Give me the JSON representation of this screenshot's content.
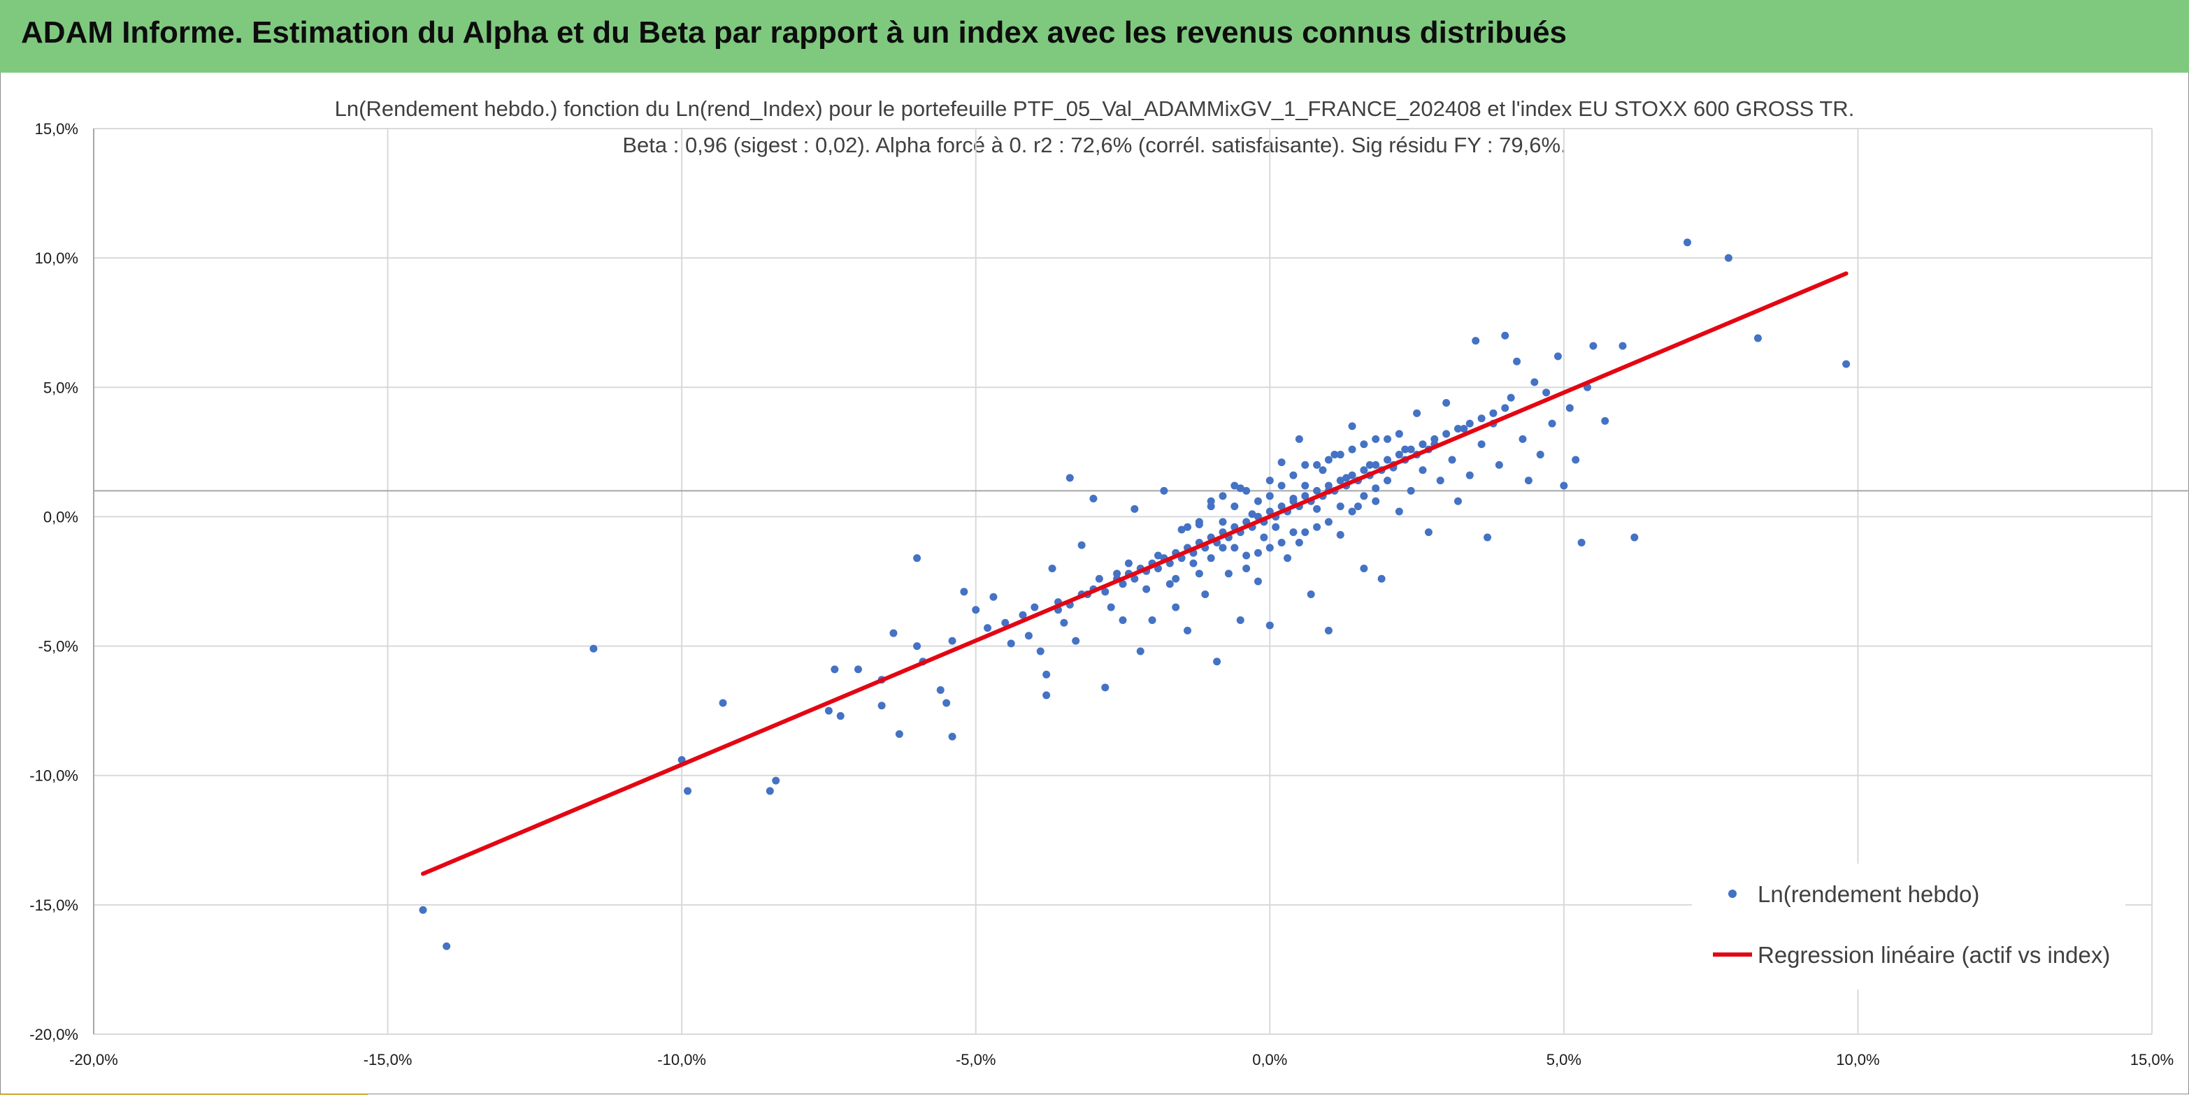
{
  "header": {
    "title": "ADAM Informe. Estimation du Alpha et du Beta par rapport à un index avec les revenus connus distribués"
  },
  "colors": {
    "banner": "#7fc97e",
    "accent": "#f7c21c",
    "points": "#4472c4",
    "regression": "#e30613",
    "grid": "#d9d9d9"
  },
  "chart_data": {
    "type": "scatter",
    "title": "Ln(Rendement hebdo.) fonction du Ln(rend_Index) pour le portefeuille PTF_05_Val_ADAMMixGV_1_FRANCE_202408 et l'index EU STOXX 600 GROSS TR.",
    "subtitle": "Beta : 0,96 (sigest : 0,02). Alpha forcé à 0. r2 : 72,6% (corrél. satisfaisante). Sig résidu FY : 79,6%.",
    "xlabel": "",
    "ylabel": "",
    "xlim": [
      -0.2,
      0.15
    ],
    "ylim": [
      -0.2,
      0.15
    ],
    "x_ticks": [
      "-20,0%",
      "-15,0%",
      "-10,0%",
      "-5,0%",
      "0,0%",
      "5,0%",
      "10,0%",
      "15,0%"
    ],
    "y_ticks": [
      "-20,0%",
      "-15,0%",
      "-10,0%",
      "-5,0%",
      "0,0%",
      "5,0%",
      "10,0%",
      "15,0%"
    ],
    "grid": true,
    "x_axis_crosses_y": 0.01,
    "legend": {
      "position": "bottom-right",
      "entries": [
        "Ln(rendement hebdo)",
        "Regression linéaire (actif vs index)"
      ]
    },
    "series": [
      {
        "name": "Ln(rendement hebdo)",
        "type": "scatter",
        "points": [
          [
            -0.144,
            -0.152
          ],
          [
            -0.14,
            -0.166
          ],
          [
            -0.115,
            -0.051
          ],
          [
            -0.1,
            -0.094
          ],
          [
            -0.099,
            -0.106
          ],
          [
            -0.093,
            -0.072
          ],
          [
            -0.085,
            -0.106
          ],
          [
            -0.084,
            -0.102
          ],
          [
            -0.075,
            -0.075
          ],
          [
            -0.073,
            -0.077
          ],
          [
            -0.074,
            -0.059
          ],
          [
            -0.07,
            -0.059
          ],
          [
            -0.066,
            -0.063
          ],
          [
            -0.066,
            -0.073
          ],
          [
            -0.063,
            -0.084
          ],
          [
            -0.064,
            -0.045
          ],
          [
            -0.06,
            -0.016
          ],
          [
            -0.06,
            -0.05
          ],
          [
            -0.059,
            -0.056
          ],
          [
            -0.056,
            -0.067
          ],
          [
            -0.055,
            -0.072
          ],
          [
            -0.054,
            -0.085
          ],
          [
            -0.054,
            -0.048
          ],
          [
            -0.052,
            -0.029
          ],
          [
            -0.05,
            -0.036
          ],
          [
            -0.048,
            -0.043
          ],
          [
            -0.047,
            -0.031
          ],
          [
            -0.045,
            -0.041
          ],
          [
            -0.044,
            -0.049
          ],
          [
            -0.042,
            -0.038
          ],
          [
            -0.041,
            -0.046
          ],
          [
            -0.04,
            -0.035
          ],
          [
            -0.039,
            -0.052
          ],
          [
            -0.038,
            -0.069
          ],
          [
            -0.038,
            -0.061
          ],
          [
            -0.037,
            -0.02
          ],
          [
            -0.036,
            -0.033
          ],
          [
            -0.035,
            -0.041
          ],
          [
            -0.034,
            0.015
          ],
          [
            -0.033,
            -0.048
          ],
          [
            -0.032,
            -0.011
          ],
          [
            -0.031,
            -0.03
          ],
          [
            -0.03,
            0.007
          ],
          [
            -0.029,
            -0.024
          ],
          [
            -0.028,
            -0.066
          ],
          [
            -0.027,
            -0.035
          ],
          [
            -0.026,
            -0.022
          ],
          [
            -0.025,
            -0.04
          ],
          [
            -0.024,
            -0.018
          ],
          [
            -0.023,
            0.003
          ],
          [
            -0.022,
            -0.052
          ],
          [
            -0.021,
            -0.028
          ],
          [
            -0.02,
            -0.04
          ],
          [
            -0.019,
            -0.015
          ],
          [
            -0.018,
            0.01
          ],
          [
            -0.017,
            -0.026
          ],
          [
            -0.016,
            -0.035
          ],
          [
            -0.015,
            -0.005
          ],
          [
            -0.014,
            -0.044
          ],
          [
            -0.013,
            -0.018
          ],
          [
            -0.012,
            -0.003
          ],
          [
            -0.011,
            -0.03
          ],
          [
            -0.01,
            0.006
          ],
          [
            -0.009,
            -0.056
          ],
          [
            -0.008,
            -0.012
          ],
          [
            -0.007,
            -0.022
          ],
          [
            -0.006,
            0.004
          ],
          [
            -0.005,
            -0.04
          ],
          [
            -0.005,
            0.011
          ],
          [
            -0.004,
            -0.015
          ],
          [
            -0.003,
            0.001
          ],
          [
            -0.002,
            -0.025
          ],
          [
            -0.001,
            -0.008
          ],
          [
            0.0,
            0.014
          ],
          [
            0.0,
            -0.042
          ],
          [
            0.001,
            -0.004
          ],
          [
            0.002,
            0.021
          ],
          [
            0.003,
            -0.016
          ],
          [
            0.004,
            0.007
          ],
          [
            0.005,
            0.03
          ],
          [
            0.005,
            -0.01
          ],
          [
            0.006,
            0.012
          ],
          [
            0.007,
            -0.03
          ],
          [
            0.008,
            0.003
          ],
          [
            0.009,
            0.018
          ],
          [
            0.01,
            -0.044
          ],
          [
            0.01,
            0.01
          ],
          [
            0.011,
            0.024
          ],
          [
            0.012,
            -0.007
          ],
          [
            0.013,
            0.015
          ],
          [
            0.014,
            0.035
          ],
          [
            0.015,
            0.004
          ],
          [
            0.016,
            -0.02
          ],
          [
            0.017,
            0.02
          ],
          [
            0.018,
            0.011
          ],
          [
            0.019,
            -0.024
          ],
          [
            0.02,
            0.03
          ],
          [
            0.021,
            0.019
          ],
          [
            0.022,
            0.002
          ],
          [
            0.023,
            0.026
          ],
          [
            0.024,
            0.01
          ],
          [
            0.025,
            0.04
          ],
          [
            0.026,
            0.018
          ],
          [
            0.027,
            -0.006
          ],
          [
            0.028,
            0.028
          ],
          [
            0.029,
            0.014
          ],
          [
            0.03,
            0.044
          ],
          [
            0.031,
            0.022
          ],
          [
            0.032,
            0.006
          ],
          [
            0.033,
            0.034
          ],
          [
            0.034,
            0.016
          ],
          [
            0.035,
            0.068
          ],
          [
            0.036,
            0.028
          ],
          [
            0.037,
            -0.008
          ],
          [
            0.038,
            0.04
          ],
          [
            0.039,
            0.02
          ],
          [
            0.04,
            0.07
          ],
          [
            0.041,
            0.046
          ],
          [
            0.042,
            0.06
          ],
          [
            0.043,
            0.03
          ],
          [
            0.044,
            0.014
          ],
          [
            0.045,
            0.052
          ],
          [
            0.046,
            0.024
          ],
          [
            0.047,
            0.048
          ],
          [
            0.048,
            0.036
          ],
          [
            0.049,
            0.062
          ],
          [
            0.05,
            0.012
          ],
          [
            0.051,
            0.042
          ],
          [
            0.052,
            0.022
          ],
          [
            0.053,
            -0.01
          ],
          [
            0.054,
            0.05
          ],
          [
            0.055,
            0.066
          ],
          [
            0.057,
            0.037
          ],
          [
            0.06,
            0.066
          ],
          [
            0.062,
            -0.008
          ],
          [
            0.071,
            0.106
          ],
          [
            0.078,
            0.1
          ],
          [
            0.083,
            0.069
          ],
          [
            0.098,
            0.059
          ],
          [
            -0.036,
            -0.036
          ],
          [
            -0.034,
            -0.034
          ],
          [
            -0.032,
            -0.03
          ],
          [
            -0.03,
            -0.028
          ],
          [
            -0.028,
            -0.029
          ],
          [
            -0.026,
            -0.024
          ],
          [
            -0.025,
            -0.026
          ],
          [
            -0.024,
            -0.022
          ],
          [
            -0.023,
            -0.024
          ],
          [
            -0.022,
            -0.02
          ],
          [
            -0.021,
            -0.021
          ],
          [
            -0.02,
            -0.018
          ],
          [
            -0.019,
            -0.02
          ],
          [
            -0.018,
            -0.016
          ],
          [
            -0.017,
            -0.018
          ],
          [
            -0.016,
            -0.014
          ],
          [
            -0.015,
            -0.016
          ],
          [
            -0.014,
            -0.012
          ],
          [
            -0.013,
            -0.014
          ],
          [
            -0.012,
            -0.01
          ],
          [
            -0.011,
            -0.012
          ],
          [
            -0.01,
            -0.008
          ],
          [
            -0.009,
            -0.01
          ],
          [
            -0.008,
            -0.006
          ],
          [
            -0.007,
            -0.008
          ],
          [
            -0.006,
            -0.004
          ],
          [
            -0.005,
            -0.006
          ],
          [
            -0.004,
            -0.002
          ],
          [
            -0.003,
            -0.004
          ],
          [
            -0.002,
            0.0
          ],
          [
            -0.001,
            -0.002
          ],
          [
            0.0,
            0.002
          ],
          [
            0.001,
            0.0
          ],
          [
            0.002,
            0.004
          ],
          [
            0.003,
            0.002
          ],
          [
            0.004,
            0.006
          ],
          [
            0.005,
            0.004
          ],
          [
            0.006,
            0.008
          ],
          [
            0.007,
            0.006
          ],
          [
            0.008,
            0.01
          ],
          [
            0.009,
            0.008
          ],
          [
            0.01,
            0.012
          ],
          [
            0.011,
            0.01
          ],
          [
            0.012,
            0.014
          ],
          [
            0.013,
            0.012
          ],
          [
            0.014,
            0.016
          ],
          [
            0.015,
            0.014
          ],
          [
            0.016,
            0.018
          ],
          [
            0.017,
            0.016
          ],
          [
            0.018,
            0.02
          ],
          [
            0.019,
            0.018
          ],
          [
            0.02,
            0.022
          ],
          [
            0.021,
            0.02
          ],
          [
            0.022,
            0.024
          ],
          [
            0.023,
            0.022
          ],
          [
            0.024,
            0.026
          ],
          [
            0.025,
            0.024
          ],
          [
            0.026,
            0.028
          ],
          [
            0.027,
            0.026
          ],
          [
            0.028,
            0.03
          ],
          [
            0.03,
            0.032
          ],
          [
            0.032,
            0.034
          ],
          [
            0.034,
            0.036
          ],
          [
            0.036,
            0.038
          ],
          [
            0.038,
            0.036
          ],
          [
            0.04,
            0.042
          ],
          [
            -0.012,
            -0.002
          ],
          [
            -0.01,
            0.004
          ],
          [
            -0.008,
            0.008
          ],
          [
            -0.006,
            -0.012
          ],
          [
            -0.004,
            0.01
          ],
          [
            -0.002,
            -0.014
          ],
          [
            0.0,
            0.008
          ],
          [
            0.002,
            -0.01
          ],
          [
            0.004,
            0.016
          ],
          [
            0.006,
            -0.006
          ],
          [
            0.008,
            0.02
          ],
          [
            0.01,
            -0.002
          ],
          [
            0.012,
            0.024
          ],
          [
            0.014,
            0.002
          ],
          [
            0.016,
            0.028
          ],
          [
            0.018,
            0.006
          ],
          [
            0.02,
            0.014
          ],
          [
            0.022,
            0.032
          ],
          [
            -0.016,
            -0.024
          ],
          [
            -0.014,
            -0.004
          ],
          [
            -0.012,
            -0.022
          ],
          [
            -0.01,
            -0.016
          ],
          [
            -0.008,
            -0.002
          ],
          [
            -0.006,
            0.012
          ],
          [
            -0.004,
            -0.02
          ],
          [
            -0.002,
            0.006
          ],
          [
            0.0,
            -0.012
          ],
          [
            0.002,
            0.012
          ],
          [
            0.004,
            -0.006
          ],
          [
            0.006,
            0.02
          ],
          [
            0.008,
            -0.004
          ],
          [
            0.01,
            0.022
          ],
          [
            0.012,
            0.004
          ],
          [
            0.014,
            0.026
          ],
          [
            0.016,
            0.008
          ],
          [
            0.018,
            0.03
          ]
        ]
      },
      {
        "name": "Regression linéaire (actif vs index)",
        "type": "line",
        "points": [
          [
            -0.144,
            -0.138
          ],
          [
            0.098,
            0.094
          ]
        ]
      }
    ]
  }
}
